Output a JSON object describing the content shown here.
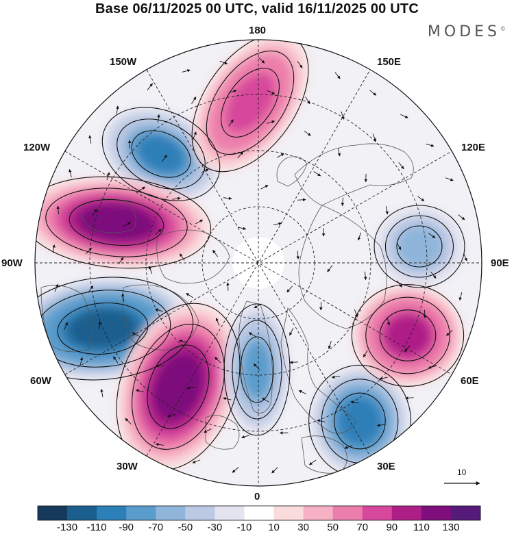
{
  "title": "Base 06/11/2025 00 UTC, valid 16/11/2025 00 UTC",
  "brand": "MODES",
  "brand_mark": "©",
  "longitude_labels": {
    "top": "180",
    "bottom": "0",
    "left": "90W",
    "right": "90E",
    "upper_left_1": "150W",
    "upper_left_2": "120W",
    "upper_right_1": "150E",
    "upper_right_2": "120E",
    "lower_left_1": "60W",
    "lower_left_2": "30W",
    "lower_right_1": "60E",
    "lower_right_2": "30E"
  },
  "vector_reference": "10",
  "colorbar": {
    "ticks": [
      "-130",
      "-110",
      "-90",
      "-70",
      "-50",
      "-30",
      "-10",
      "10",
      "30",
      "50",
      "70",
      "90",
      "110",
      "130"
    ],
    "colors": [
      "#153a5c",
      "#1a5f8e",
      "#2d7fb8",
      "#5a9ccc",
      "#8fb5da",
      "#bcc9e4",
      "#e4e4f0",
      "#ffffff",
      "#fbdcdc",
      "#f6b1c4",
      "#ec7eab",
      "#d7479b",
      "#ad1f87",
      "#7d0e7b",
      "#551a7a"
    ]
  },
  "anomalies": [
    {
      "name": "low-aleutian-west",
      "sign": "negative",
      "magnitude": 100
    },
    {
      "name": "high-north-pacific",
      "sign": "positive",
      "magnitude": 115
    },
    {
      "name": "high-bering",
      "sign": "positive",
      "magnitude": 85
    },
    {
      "name": "low-north-atlantic-west",
      "sign": "negative",
      "magnitude": 125
    },
    {
      "name": "high-north-atlantic",
      "sign": "positive",
      "magnitude": 115
    },
    {
      "name": "low-greenland",
      "sign": "negative",
      "magnitude": 80
    },
    {
      "name": "low-europe",
      "sign": "negative",
      "magnitude": 95
    },
    {
      "name": "high-western-siberia",
      "sign": "positive",
      "magnitude": 100
    },
    {
      "name": "low-central-siberia",
      "sign": "negative",
      "magnitude": 55
    }
  ]
}
